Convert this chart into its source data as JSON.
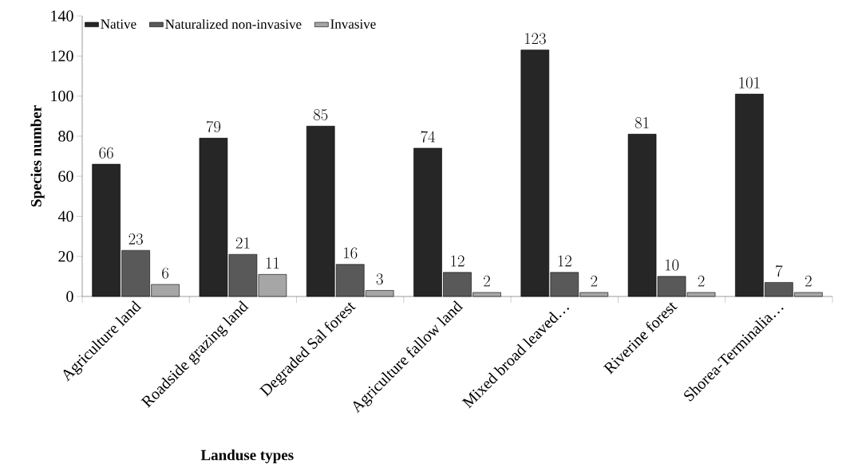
{
  "chart_data": {
    "type": "bar",
    "xlabel": "Landuse types",
    "ylabel": "Species number",
    "categories": [
      "Agriculture land",
      "Roadside grazing land",
      "Degraded Sal forest",
      "Agriculture fallow land",
      "Mixed broad leaved…",
      "Riverine forest",
      "Shorea-Terminalia…"
    ],
    "series": [
      {
        "name": "Native",
        "color": "#262626",
        "values": [
          66,
          79,
          85,
          74,
          123,
          81,
          101
        ]
      },
      {
        "name": "Naturalized non-invasive",
        "color": "#595959",
        "values": [
          23,
          21,
          16,
          12,
          12,
          10,
          7
        ]
      },
      {
        "name": "Invasive",
        "color": "#a6a6a6",
        "values": [
          6,
          11,
          3,
          2,
          2,
          2,
          2
        ]
      }
    ],
    "ylim": [
      0,
      140
    ],
    "yticks": [
      0,
      20,
      40,
      60,
      80,
      100,
      120,
      140
    ],
    "data_labels": true,
    "legend": "top left",
    "grid": false
  }
}
